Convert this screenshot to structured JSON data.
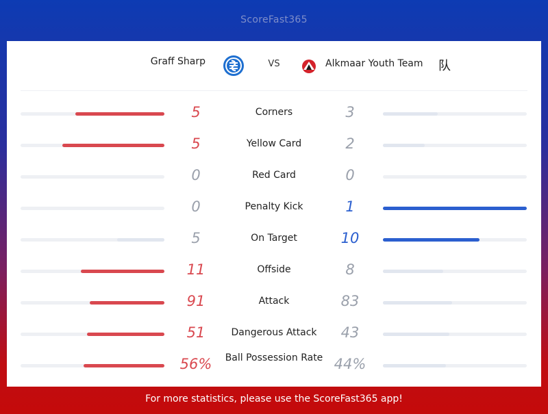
{
  "app": {
    "brand": "ScoreFast365"
  },
  "match": {
    "home": {
      "name": "Graff Sharp",
      "logo_icon": "home-team-crest"
    },
    "vs": "VS",
    "away": {
      "name": "Alkmaar Youth Team",
      "suffix": "队",
      "logo_icon": "away-team-crest"
    }
  },
  "colors": {
    "home": "#d9484f",
    "away": "#2b5fcf",
    "muted": "#e1e6ef",
    "track": "#eef0f4"
  },
  "stats": [
    {
      "label": "Corners",
      "home": "5",
      "away": "3",
      "home_fill": 0.62,
      "away_fill": 0.38,
      "leader": "home"
    },
    {
      "label": "Yellow Card",
      "home": "5",
      "away": "2",
      "home_fill": 0.71,
      "away_fill": 0.29,
      "leader": "home"
    },
    {
      "label": "Red Card",
      "home": "0",
      "away": "0",
      "home_fill": 0,
      "away_fill": 0,
      "leader": "none"
    },
    {
      "label": "Penalty Kick",
      "home": "0",
      "away": "1",
      "home_fill": 0,
      "away_fill": 1.0,
      "leader": "away"
    },
    {
      "label": "On Target",
      "home": "5",
      "away": "10",
      "home_fill": 0.33,
      "away_fill": 0.67,
      "leader": "away"
    },
    {
      "label": "Offside",
      "home": "11",
      "away": "8",
      "home_fill": 0.58,
      "away_fill": 0.42,
      "leader": "home"
    },
    {
      "label": "Attack",
      "home": "91",
      "away": "83",
      "home_fill": 0.52,
      "away_fill": 0.48,
      "leader": "home"
    },
    {
      "label": "Dangerous Attack",
      "home": "51",
      "away": "43",
      "home_fill": 0.54,
      "away_fill": 0.46,
      "leader": "home"
    },
    {
      "label": "Ball Possession Rate",
      "home": "56%",
      "away": "44%",
      "home_fill": 0.56,
      "away_fill": 0.44,
      "leader": "home"
    }
  ],
  "footer": {
    "text": "For more statistics, please use the ScoreFast365 app!"
  }
}
